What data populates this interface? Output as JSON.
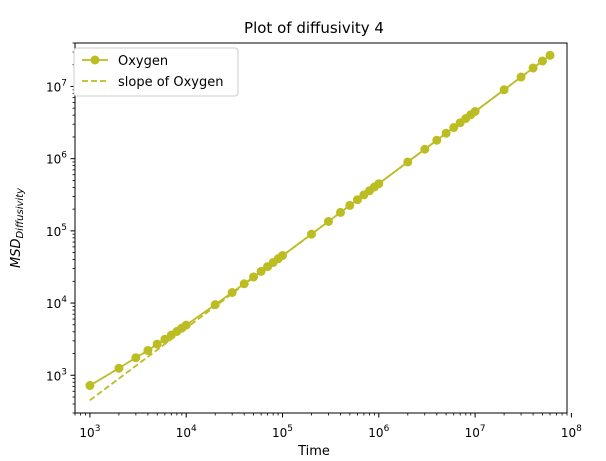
{
  "chart_data": {
    "type": "line",
    "title": "Plot of diffusivity 4",
    "xlabel": "Time",
    "ylabel": "MSD",
    "ylabel_subscript": "Diffusivity",
    "x_scale": "log",
    "y_scale": "log",
    "xlim": [
      700,
      90000000
    ],
    "ylim": [
      300,
      40000000
    ],
    "x_ticks": [
      {
        "value": 1000,
        "base": "10",
        "exp": "3"
      },
      {
        "value": 10000,
        "base": "10",
        "exp": "4"
      },
      {
        "value": 100000,
        "base": "10",
        "exp": "5"
      },
      {
        "value": 1000000,
        "base": "10",
        "exp": "6"
      },
      {
        "value": 10000000,
        "base": "10",
        "exp": "7"
      },
      {
        "value": 100000000,
        "base": "10",
        "exp": "8"
      }
    ],
    "y_ticks": [
      {
        "value": 1000,
        "base": "10",
        "exp": "3"
      },
      {
        "value": 10000,
        "base": "10",
        "exp": "4"
      },
      {
        "value": 100000,
        "base": "10",
        "exp": "5"
      },
      {
        "value": 1000000,
        "base": "10",
        "exp": "6"
      },
      {
        "value": 10000000,
        "base": "10",
        "exp": "7"
      }
    ],
    "grid": false,
    "legend_position": "top-left",
    "color": "#bcbd22",
    "series": [
      {
        "name": "Oxygen",
        "style": "solid-marker",
        "x": [
          1000,
          2000,
          3000,
          4000,
          5000,
          6000,
          7000,
          8000,
          9000,
          10000,
          20000,
          30000,
          40000,
          50000,
          60000,
          70000,
          80000,
          90000,
          100000,
          200000,
          300000,
          400000,
          500000,
          600000,
          700000,
          800000,
          900000,
          1000000,
          2000000,
          3000000,
          4000000,
          5000000,
          6000000,
          7000000,
          8000000,
          9000000,
          10000000,
          20000000,
          30000000,
          40000000,
          50000000,
          60000000
        ],
        "y": [
          720,
          1250,
          1750,
          2200,
          2700,
          3150,
          3600,
          4050,
          4500,
          4950,
          9500,
          14000,
          18500,
          23000,
          27500,
          32000,
          36500,
          41000,
          45500,
          90000,
          135000,
          180000,
          225000,
          270000,
          315000,
          360000,
          405000,
          450000,
          900000,
          1350000,
          1800000,
          2250000,
          2700000,
          3150000,
          3600000,
          4050000,
          4500000,
          9000000,
          13500000,
          18000000,
          22500000,
          27000000
        ]
      },
      {
        "name": "slope of Oxygen",
        "style": "dashed",
        "x": [
          1000,
          60000000
        ],
        "y": [
          450,
          27000000
        ]
      }
    ]
  }
}
